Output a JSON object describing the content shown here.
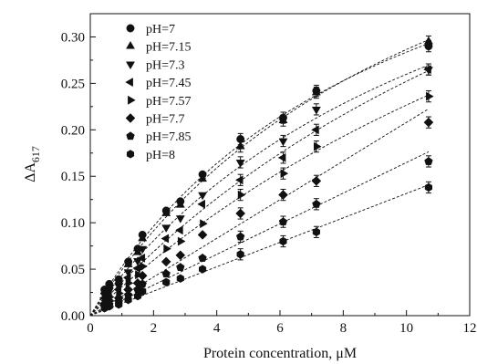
{
  "chart_data": {
    "type": "scatter",
    "xlabel": "Protein concentration, μM",
    "ylabel_main": "ΔA",
    "ylabel_sub": "617",
    "xlim": [
      0,
      12
    ],
    "ylim": [
      0,
      0.325
    ],
    "x_ticks": [
      "0",
      "2",
      "4",
      "6",
      "8",
      "10",
      "12"
    ],
    "y_ticks": [
      "0.00",
      "0.05",
      "0.10",
      "0.15",
      "0.20",
      "0.25",
      "0.30"
    ],
    "grid": false,
    "legend_position": "top-left",
    "marker_color": "#111111",
    "x": [
      0.45,
      0.6,
      0.9,
      1.2,
      1.5,
      1.65,
      2.4,
      2.85,
      3.55,
      4.75,
      6.1,
      7.15,
      10.7
    ],
    "series": [
      {
        "name": "pH=7",
        "marker": "circle",
        "fit": "saturating",
        "values": [
          0.028,
          0.034,
          0.039,
          0.058,
          0.072,
          0.087,
          0.113,
          0.123,
          0.152,
          0.19,
          0.213,
          0.242,
          0.29
        ]
      },
      {
        "name": "pH=7.15",
        "marker": "triangle-up",
        "fit": "saturating",
        "values": [
          0.026,
          0.032,
          0.037,
          0.055,
          0.068,
          0.083,
          0.11,
          0.119,
          0.147,
          0.182,
          0.21,
          0.24,
          0.295
        ]
      },
      {
        "name": "pH=7.3",
        "marker": "triangle-down",
        "fit": "saturating",
        "values": [
          0.022,
          0.027,
          0.032,
          0.047,
          0.059,
          0.072,
          0.095,
          0.105,
          0.13,
          0.165,
          0.188,
          0.222,
          0.265
        ]
      },
      {
        "name": "pH=7.45",
        "marker": "triangle-left",
        "fit": "saturating",
        "values": [
          0.019,
          0.023,
          0.028,
          0.041,
          0.051,
          0.062,
          0.083,
          0.092,
          0.12,
          0.146,
          0.17,
          0.2,
          0.265
        ]
      },
      {
        "name": "pH=7.57",
        "marker": "triangle-right",
        "fit": "saturating",
        "values": [
          0.016,
          0.02,
          0.024,
          0.035,
          0.044,
          0.053,
          0.072,
          0.08,
          0.099,
          0.13,
          0.153,
          0.182,
          0.236
        ]
      },
      {
        "name": "pH=7.7",
        "marker": "diamond",
        "fit": "linear",
        "values": [
          0.013,
          0.016,
          0.019,
          0.028,
          0.035,
          0.043,
          0.058,
          0.065,
          0.087,
          0.11,
          0.13,
          0.145,
          0.208
        ]
      },
      {
        "name": "pH=7.85",
        "marker": "pentagon",
        "fit": "linear",
        "values": [
          0.01,
          0.012,
          0.015,
          0.022,
          0.028,
          0.034,
          0.045,
          0.052,
          0.062,
          0.085,
          0.101,
          0.12,
          0.166
        ]
      },
      {
        "name": "pH=8",
        "marker": "hexagon",
        "fit": "linear",
        "values": [
          0.008,
          0.01,
          0.012,
          0.017,
          0.021,
          0.026,
          0.036,
          0.04,
          0.05,
          0.066,
          0.08,
          0.09,
          0.138
        ]
      }
    ]
  }
}
